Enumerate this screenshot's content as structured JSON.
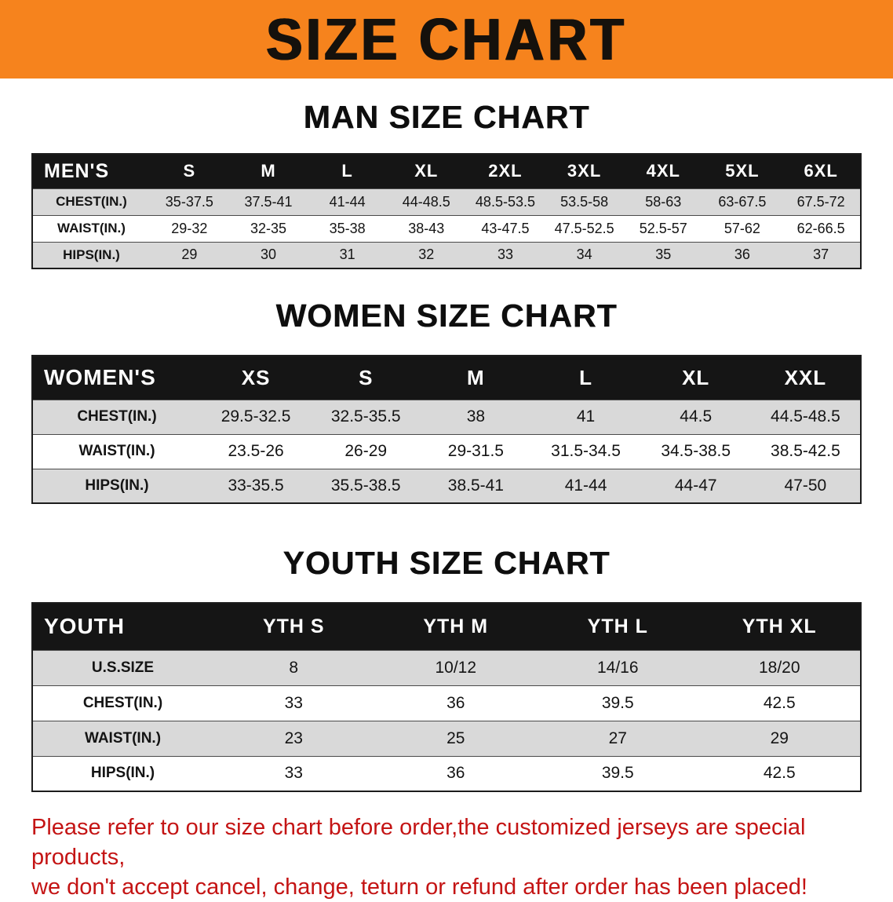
{
  "banner": {
    "title": "SIZE CHART"
  },
  "men": {
    "heading": "MAN SIZE CHART",
    "table": {
      "header": [
        "MEN'S",
        "S",
        "M",
        "L",
        "XL",
        "2XL",
        "3XL",
        "4XL",
        "5XL",
        "6XL"
      ],
      "rows": [
        [
          "CHEST(IN.)",
          "35-37.5",
          "37.5-41",
          "41-44",
          "44-48.5",
          "48.5-53.5",
          "53.5-58",
          "58-63",
          "63-67.5",
          "67.5-72"
        ],
        [
          "WAIST(IN.)",
          "29-32",
          "32-35",
          "35-38",
          "38-43",
          "43-47.5",
          "47.5-52.5",
          "52.5-57",
          "57-62",
          "62-66.5"
        ],
        [
          "HIPS(IN.)",
          "29",
          "30",
          "31",
          "32",
          "33",
          "34",
          "35",
          "36",
          "37"
        ]
      ]
    }
  },
  "women": {
    "heading": "WOMEN SIZE CHART",
    "table": {
      "header": [
        "WOMEN'S",
        "XS",
        "S",
        "M",
        "L",
        "XL",
        "XXL"
      ],
      "rows": [
        [
          "CHEST(IN.)",
          "29.5-32.5",
          "32.5-35.5",
          "38",
          "41",
          "44.5",
          "44.5-48.5"
        ],
        [
          "WAIST(IN.)",
          "23.5-26",
          "26-29",
          "29-31.5",
          "31.5-34.5",
          "34.5-38.5",
          "38.5-42.5"
        ],
        [
          "HIPS(IN.)",
          "33-35.5",
          "35.5-38.5",
          "38.5-41",
          "41-44",
          "44-47",
          "47-50"
        ]
      ]
    }
  },
  "youth": {
    "heading": "YOUTH SIZE CHART",
    "table": {
      "header": [
        "YOUTH",
        "YTH S",
        "YTH M",
        "YTH L",
        "YTH XL"
      ],
      "rows": [
        [
          "U.S.SIZE",
          "8",
          "10/12",
          "14/16",
          "18/20"
        ],
        [
          "CHEST(IN.)",
          "33",
          "36",
          "39.5",
          "42.5"
        ],
        [
          "WAIST(IN.)",
          "23",
          "25",
          "27",
          "29"
        ],
        [
          "HIPS(IN.)",
          "33",
          "36",
          "39.5",
          "42.5"
        ]
      ]
    }
  },
  "disclaimer": {
    "line1": "Please refer to our size chart before order,the customized jerseys are special products,",
    "line2": "we don't accept cancel, change, teturn or refund after order has been placed!"
  },
  "colors": {
    "banner_bg": "#f6831d",
    "header_bg": "#151515",
    "stripe": "#d9d9d9",
    "disclaimer": "#c41414"
  }
}
